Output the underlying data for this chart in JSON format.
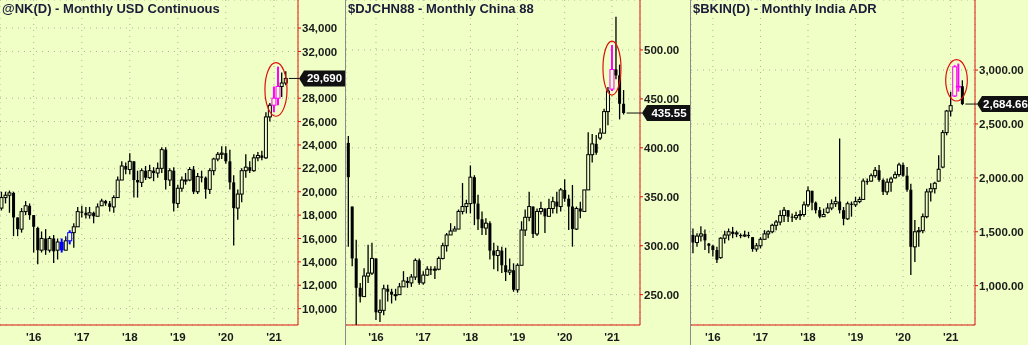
{
  "chart_data": [
    {
      "type": "candlestick",
      "title": "@NK(D) - Monthly USD Continuous",
      "x": [
        "2015-05",
        "2015-06",
        "2015-07",
        "2015-08",
        "2015-09",
        "2015-10",
        "2015-11",
        "2015-12",
        "2016-01",
        "2016-02",
        "2016-03",
        "2016-04",
        "2016-05",
        "2016-06",
        "2016-07",
        "2016-08",
        "2016-09",
        "2016-10",
        "2016-11",
        "2016-12",
        "2017-01",
        "2017-02",
        "2017-03",
        "2017-04",
        "2017-05",
        "2017-06",
        "2017-07",
        "2017-08",
        "2017-09",
        "2017-10",
        "2017-11",
        "2017-12",
        "2018-01",
        "2018-02",
        "2018-03",
        "2018-04",
        "2018-05",
        "2018-06",
        "2018-07",
        "2018-08",
        "2018-09",
        "2018-10",
        "2018-11",
        "2018-12",
        "2019-01",
        "2019-02",
        "2019-03",
        "2019-04",
        "2019-05",
        "2019-06",
        "2019-07",
        "2019-08",
        "2019-09",
        "2019-10",
        "2019-11",
        "2019-12",
        "2020-01",
        "2020-02",
        "2020-03",
        "2020-04",
        "2020-05",
        "2020-06",
        "2020-07",
        "2020-08",
        "2020-09",
        "2020-10",
        "2020-11",
        "2020-12",
        "2021-01",
        "2021-02",
        "2021-03",
        "2021-04"
      ],
      "ohlc": [
        [
          18600,
          20000,
          18400,
          19500
        ],
        [
          19500,
          20000,
          19000,
          19700
        ],
        [
          19700,
          20100,
          18200,
          19900
        ],
        [
          19900,
          20000,
          16200,
          17800
        ],
        [
          17800,
          17800,
          16200,
          16800
        ],
        [
          16800,
          18600,
          16500,
          18300
        ],
        [
          18300,
          19200,
          18000,
          18800
        ],
        [
          18800,
          19000,
          17600,
          18000
        ],
        [
          18000,
          18000,
          14800,
          17000
        ],
        [
          16900,
          17000,
          13800,
          15000
        ],
        [
          15000,
          16600,
          14800,
          16000
        ],
        [
          16000,
          16800,
          14600,
          15000
        ],
        [
          15000,
          16200,
          14800,
          16000
        ],
        [
          16000,
          16300,
          13900,
          14900
        ],
        [
          15000,
          16000,
          14200,
          15700
        ],
        [
          15700,
          16000,
          14800,
          15000
        ],
        [
          15000,
          16200,
          15000,
          15800
        ],
        [
          15800,
          16700,
          15500,
          16500
        ],
        [
          16500,
          17300,
          15200,
          17000
        ],
        [
          17000,
          18700,
          17000,
          18300
        ],
        [
          18300,
          18800,
          17800,
          18200
        ],
        [
          18200,
          18700,
          17700,
          18000
        ],
        [
          18000,
          18700,
          17700,
          18200
        ],
        [
          18200,
          18300,
          17300,
          17900
        ],
        [
          17900,
          19000,
          17900,
          18700
        ],
        [
          18800,
          19400,
          18800,
          19200
        ],
        [
          19200,
          19300,
          18800,
          19000
        ],
        [
          19000,
          19200,
          18300,
          18700
        ],
        [
          18700,
          19700,
          18200,
          19500
        ],
        [
          19500,
          21300,
          19500,
          21000
        ],
        [
          21000,
          22600,
          21000,
          22200
        ],
        [
          22200,
          22500,
          21500,
          21900
        ],
        [
          21900,
          23300,
          21500,
          22600
        ],
        [
          22600,
          22600,
          19500,
          21000
        ],
        [
          21000,
          21800,
          19500,
          20800
        ],
        [
          20800,
          22000,
          20400,
          21800
        ],
        [
          21800,
          22200,
          21000,
          21200
        ],
        [
          21200,
          22300,
          21100,
          21800
        ],
        [
          21800,
          22100,
          20900,
          21600
        ],
        [
          21600,
          22500,
          21200,
          22000
        ],
        [
          22000,
          23800,
          21600,
          23600
        ],
        [
          23600,
          23800,
          20200,
          21000
        ],
        [
          21000,
          22000,
          20500,
          21800
        ],
        [
          21800,
          22100,
          18300,
          19000
        ],
        [
          19000,
          20600,
          18600,
          20300
        ],
        [
          20300,
          21300,
          20000,
          21000
        ],
        [
          21000,
          21600,
          20600,
          21000
        ],
        [
          21000,
          22100,
          20900,
          21900
        ],
        [
          21900,
          22200,
          19800,
          20000
        ],
        [
          20000,
          21600,
          19800,
          21300
        ],
        [
          21300,
          21800,
          20800,
          21200
        ],
        [
          21200,
          21300,
          19400,
          20200
        ],
        [
          20200,
          22000,
          19800,
          21800
        ],
        [
          21800,
          22900,
          21400,
          22800
        ],
        [
          22800,
          23400,
          22600,
          23200
        ],
        [
          23200,
          23900,
          22800,
          23300
        ],
        [
          23300,
          23900,
          22400,
          22600
        ],
        [
          22600,
          23600,
          20200,
          20800
        ],
        [
          20800,
          21400,
          15400,
          18600
        ],
        [
          18600,
          20200,
          17600,
          19800
        ],
        [
          19800,
          22000,
          19100,
          21800
        ],
        [
          21800,
          23200,
          21200,
          22100
        ],
        [
          22100,
          22600,
          21600,
          21800
        ],
        [
          21800,
          23200,
          21700,
          22900
        ],
        [
          22900,
          23400,
          22600,
          23100
        ],
        [
          23100,
          23500,
          22700,
          22900
        ],
        [
          22900,
          26800,
          22800,
          26400
        ],
        [
          26400,
          27600,
          26000,
          27400
        ],
        [
          27400,
          29000,
          26800,
          28000
        ],
        [
          28000,
          30700,
          27400,
          29000
        ],
        [
          29000,
          30200,
          28100,
          29300
        ],
        [
          29300,
          30300,
          29100,
          29690
        ]
      ],
      "colors": [
        "#000000",
        "#000000",
        "#000000",
        "#000000",
        "#000000",
        "#000000",
        "#000000",
        "#000000",
        "#000000",
        "#000000",
        "#000000",
        "#000000",
        "#000000",
        "#000000",
        "#000000",
        "#0000ff",
        "#000000",
        "#0000ff",
        "#000000",
        "#000000",
        "#000000",
        "#000000",
        "#000000",
        "#000000",
        "#000000",
        "#000000",
        "#000000",
        "#000000",
        "#000000",
        "#000000",
        "#000000",
        "#000000",
        "#000000",
        "#000000",
        "#000000",
        "#000000",
        "#000000",
        "#000000",
        "#000000",
        "#000000",
        "#000000",
        "#000000",
        "#000000",
        "#000000",
        "#000000",
        "#000000",
        "#000000",
        "#000000",
        "#000000",
        "#000000",
        "#000000",
        "#000000",
        "#000000",
        "#000000",
        "#000000",
        "#000000",
        "#000000",
        "#000000",
        "#000000",
        "#000000",
        "#000000",
        "#000000",
        "#000000",
        "#000000",
        "#000000",
        "#000000",
        "#000000",
        "#000000",
        "#ff00ff",
        "#ff00ff",
        "#000000",
        "#000000"
      ],
      "xlim": [
        "2015-04-20",
        "2021-07-03"
      ],
      "xticks": [
        {
          "value": "2016-01",
          "label": "'16"
        },
        {
          "value": "2017-01",
          "label": "'17"
        },
        {
          "value": "2018-01",
          "label": "'18"
        },
        {
          "value": "2019-01",
          "label": "'19"
        },
        {
          "value": "2020-01",
          "label": "'20"
        },
        {
          "value": "2021-01",
          "label": "'21"
        }
      ],
      "ylim": [
        8600,
        36400
      ],
      "yticks": [
        {
          "value": 10000,
          "label": "10,000"
        },
        {
          "value": 12000,
          "label": "12,000"
        },
        {
          "value": 14000,
          "label": "14,000"
        },
        {
          "value": 16000,
          "label": "16,000"
        },
        {
          "value": 18000,
          "label": "18,000"
        },
        {
          "value": 20000,
          "label": "20,000"
        },
        {
          "value": 22000,
          "label": "22,000"
        },
        {
          "value": 24000,
          "label": "24,000"
        },
        {
          "value": 26000,
          "label": "26,000"
        },
        {
          "value": 28000,
          "label": "28,000"
        },
        {
          "value": 32000,
          "label": "32,000"
        },
        {
          "value": 34000,
          "label": "34,000"
        }
      ],
      "grid": true,
      "annotations": [
        {
          "text": "29,690",
          "x": "2021-04",
          "y": 29690
        }
      ]
    },
    {
      "type": "candlestick",
      "title": "$DJCHN88 - Monthly China 88",
      "x": [
        "2015-06",
        "2015-07",
        "2015-08",
        "2015-09",
        "2015-10",
        "2015-11",
        "2015-12",
        "2016-01",
        "2016-02",
        "2016-03",
        "2016-04",
        "2016-05",
        "2016-06",
        "2016-07",
        "2016-08",
        "2016-09",
        "2016-10",
        "2016-11",
        "2016-12",
        "2017-01",
        "2017-02",
        "2017-03",
        "2017-04",
        "2017-05",
        "2017-06",
        "2017-07",
        "2017-08",
        "2017-09",
        "2017-10",
        "2017-11",
        "2017-12",
        "2018-01",
        "2018-02",
        "2018-03",
        "2018-04",
        "2018-05",
        "2018-06",
        "2018-07",
        "2018-08",
        "2018-09",
        "2018-10",
        "2018-11",
        "2018-12",
        "2019-01",
        "2019-02",
        "2019-03",
        "2019-04",
        "2019-05",
        "2019-06",
        "2019-07",
        "2019-08",
        "2019-09",
        "2019-10",
        "2019-11",
        "2019-12",
        "2020-01",
        "2020-02",
        "2020-03",
        "2020-04",
        "2020-05",
        "2020-06",
        "2020-07",
        "2020-08",
        "2020-09",
        "2020-10",
        "2020-11",
        "2020-12",
        "2021-01",
        "2021-02",
        "2021-03",
        "2021-04"
      ],
      "ohlc": [
        [
          405,
          412,
          299,
          370
        ],
        [
          340,
          340,
          279,
          287
        ],
        [
          287,
          306,
          219,
          257
        ],
        [
          257,
          262,
          242,
          248
        ],
        [
          248,
          277,
          248,
          269
        ],
        [
          269,
          301,
          262,
          272
        ],
        [
          272,
          303,
          270,
          287
        ],
        [
          287,
          287,
          224,
          232
        ],
        [
          232,
          245,
          222,
          234
        ],
        [
          234,
          260,
          229,
          256
        ],
        [
          256,
          260,
          243,
          253
        ],
        [
          253,
          256,
          241,
          250
        ],
        [
          250,
          256,
          244,
          250
        ],
        [
          250,
          262,
          250,
          258
        ],
        [
          258,
          274,
          258,
          264
        ],
        [
          264,
          268,
          257,
          262
        ],
        [
          262,
          271,
          258,
          268
        ],
        [
          268,
          287,
          265,
          285
        ],
        [
          285,
          287,
          260,
          262
        ],
        [
          262,
          274,
          260,
          270
        ],
        [
          270,
          279,
          269,
          276
        ],
        [
          276,
          279,
          270,
          275
        ],
        [
          275,
          279,
          266,
          276
        ],
        [
          276,
          289,
          275,
          287
        ],
        [
          287,
          303,
          286,
          300
        ],
        [
          300,
          313,
          294,
          311
        ],
        [
          311,
          323,
          311,
          315
        ],
        [
          315,
          320,
          315,
          317
        ],
        [
          317,
          337,
          317,
          335
        ],
        [
          335,
          364,
          332,
          340
        ],
        [
          340,
          347,
          333,
          343
        ],
        [
          343,
          382,
          333,
          370
        ],
        [
          370,
          372,
          321,
          343
        ],
        [
          343,
          352,
          316,
          327
        ],
        [
          327,
          335,
          311,
          318
        ],
        [
          318,
          328,
          311,
          323
        ],
        [
          323,
          325,
          286,
          295
        ],
        [
          295,
          303,
          276,
          290
        ],
        [
          290,
          300,
          274,
          295
        ],
        [
          295,
          299,
          272,
          280
        ],
        [
          280,
          298,
          264,
          273
        ],
        [
          273,
          287,
          270,
          275
        ],
        [
          275,
          282,
          253,
          255
        ],
        [
          255,
          282,
          252,
          280
        ],
        [
          280,
          325,
          280,
          316
        ],
        [
          316,
          337,
          310,
          329
        ],
        [
          329,
          355,
          325,
          340
        ],
        [
          340,
          340,
          308,
          312
        ],
        [
          312,
          338,
          310,
          335
        ],
        [
          335,
          345,
          332,
          338
        ],
        [
          338,
          338,
          313,
          330
        ],
        [
          330,
          348,
          330,
          338
        ],
        [
          338,
          350,
          333,
          345
        ],
        [
          345,
          355,
          333,
          340
        ],
        [
          340,
          359,
          335,
          357
        ],
        [
          357,
          368,
          345,
          348
        ],
        [
          348,
          352,
          316,
          340
        ],
        [
          340,
          362,
          299,
          317
        ],
        [
          317,
          340,
          316,
          338
        ],
        [
          338,
          345,
          328,
          335
        ],
        [
          335,
          357,
          335,
          357
        ],
        [
          357,
          416,
          357,
          393
        ],
        [
          393,
          414,
          385,
          404
        ],
        [
          404,
          413,
          393,
          395
        ],
        [
          410,
          420,
          408,
          415
        ],
        [
          415,
          440,
          415,
          437
        ],
        [
          437,
          462,
          423,
          458
        ],
        [
          460,
          505,
          458,
          480
        ],
        [
          480,
          534,
          470,
          474
        ],
        [
          474,
          485,
          429,
          445
        ],
        [
          445,
          459,
          434,
          435.55
        ]
      ],
      "colors": [
        "#000000",
        "#000000",
        "#000000",
        "#000000",
        "#000000",
        "#000000",
        "#000000",
        "#000000",
        "#000000",
        "#000000",
        "#000000",
        "#000000",
        "#000000",
        "#000000",
        "#000000",
        "#000000",
        "#000000",
        "#000000",
        "#000000",
        "#000000",
        "#000000",
        "#000000",
        "#000000",
        "#000000",
        "#000000",
        "#000000",
        "#000000",
        "#000000",
        "#000000",
        "#000000",
        "#000000",
        "#000000",
        "#000000",
        "#000000",
        "#000000",
        "#000000",
        "#000000",
        "#000000",
        "#000000",
        "#000000",
        "#000000",
        "#000000",
        "#000000",
        "#000000",
        "#000000",
        "#000000",
        "#000000",
        "#000000",
        "#000000",
        "#000000",
        "#000000",
        "#000000",
        "#000000",
        "#000000",
        "#000000",
        "#000000",
        "#000000",
        "#000000",
        "#000000",
        "#000000",
        "#000000",
        "#000000",
        "#000000",
        "#000000",
        "#000000",
        "#000000",
        "#000000",
        "#ff00ff",
        "#000000",
        "#000000",
        "#000000"
      ],
      "xlim": [
        "2015-05-14",
        "2021-08-06"
      ],
      "xticks": [
        {
          "value": "2016-01",
          "label": "'16"
        },
        {
          "value": "2017-01",
          "label": "'17"
        },
        {
          "value": "2018-01",
          "label": "'18"
        },
        {
          "value": "2019-01",
          "label": "'19"
        },
        {
          "value": "2020-01",
          "label": "'20"
        },
        {
          "value": "2021-01",
          "label": "'21"
        }
      ],
      "ylim": [
        219,
        551
      ],
      "yticks": [
        {
          "value": 250,
          "label": "250.00"
        },
        {
          "value": 300,
          "label": "300.00"
        },
        {
          "value": 350,
          "label": "350.00"
        },
        {
          "value": 400,
          "label": "400.00"
        },
        {
          "value": 450,
          "label": "450.00"
        },
        {
          "value": 500,
          "label": "500.00"
        }
      ],
      "grid": true,
      "annotations": [
        {
          "text": "435.55",
          "x": "2021-04",
          "y": 435.55
        }
      ]
    },
    {
      "type": "candlestick",
      "title": "$BKIN(D) - Monthly India ADR",
      "x": [
        "2015-08",
        "2015-09",
        "2015-10",
        "2015-11",
        "2015-12",
        "2016-01",
        "2016-02",
        "2016-03",
        "2016-04",
        "2016-05",
        "2016-06",
        "2016-07",
        "2016-08",
        "2016-09",
        "2016-10",
        "2016-11",
        "2016-12",
        "2017-01",
        "2017-02",
        "2017-03",
        "2017-04",
        "2017-05",
        "2017-06",
        "2017-07",
        "2017-08",
        "2017-09",
        "2017-10",
        "2017-11",
        "2017-12",
        "2018-01",
        "2018-02",
        "2018-03",
        "2018-04",
        "2018-05",
        "2018-06",
        "2018-07",
        "2018-08",
        "2018-09",
        "2018-10",
        "2018-11",
        "2018-12",
        "2019-01",
        "2019-02",
        "2019-03",
        "2019-04",
        "2019-05",
        "2019-06",
        "2019-07",
        "2019-08",
        "2019-09",
        "2019-10",
        "2019-11",
        "2019-12",
        "2020-01",
        "2020-02",
        "2020-03",
        "2020-04",
        "2020-05",
        "2020-06",
        "2020-07",
        "2020-08",
        "2020-09",
        "2020-10",
        "2020-11",
        "2020-12",
        "2021-01",
        "2021-02",
        "2021-03",
        "2021-04"
      ],
      "ohlc": [
        [
          1470,
          1530,
          1300,
          1400
        ],
        [
          1400,
          1485,
          1360,
          1460
        ],
        [
          1460,
          1550,
          1410,
          1480
        ],
        [
          1480,
          1520,
          1330,
          1420
        ],
        [
          1390,
          1395,
          1300,
          1370
        ],
        [
          1370,
          1380,
          1270,
          1330
        ],
        [
          1330,
          1360,
          1210,
          1240
        ],
        [
          1260,
          1450,
          1250,
          1440
        ],
        [
          1440,
          1510,
          1390,
          1470
        ],
        [
          1470,
          1530,
          1420,
          1500
        ],
        [
          1500,
          1545,
          1440,
          1480
        ],
        [
          1480,
          1510,
          1450,
          1490
        ],
        [
          1470,
          1485,
          1440,
          1460
        ],
        [
          1460,
          1510,
          1450,
          1470
        ],
        [
          1470,
          1500,
          1440,
          1460
        ],
        [
          1450,
          1450,
          1315,
          1340
        ],
        [
          1340,
          1395,
          1315,
          1370
        ],
        [
          1370,
          1450,
          1345,
          1430
        ],
        [
          1430,
          1515,
          1425,
          1480
        ],
        [
          1480,
          1515,
          1440,
          1500
        ],
        [
          1500,
          1575,
          1485,
          1560
        ],
        [
          1560,
          1610,
          1515,
          1590
        ],
        [
          1590,
          1700,
          1560,
          1650
        ],
        [
          1650,
          1730,
          1590,
          1700
        ],
        [
          1700,
          1700,
          1590,
          1640
        ],
        [
          1640,
          1670,
          1590,
          1630
        ],
        [
          1630,
          1685,
          1610,
          1650
        ],
        [
          1650,
          1700,
          1610,
          1660
        ],
        [
          1660,
          1780,
          1640,
          1750
        ],
        [
          1750,
          1920,
          1730,
          1880
        ],
        [
          1880,
          1880,
          1700,
          1770
        ],
        [
          1770,
          1780,
          1670,
          1700
        ],
        [
          1700,
          1730,
          1625,
          1640
        ],
        [
          1640,
          1715,
          1640,
          1660
        ],
        [
          1680,
          1765,
          1670,
          1720
        ],
        [
          1720,
          1800,
          1700,
          1760
        ],
        [
          1760,
          1825,
          1730,
          1780
        ],
        [
          1780,
          2365,
          1670,
          1700
        ],
        [
          1700,
          1730,
          1560,
          1620
        ],
        [
          1620,
          1780,
          1610,
          1760
        ],
        [
          1760,
          1780,
          1640,
          1750
        ],
        [
          1750,
          1825,
          1730,
          1780
        ],
        [
          1780,
          1825,
          1765,
          1800
        ],
        [
          1800,
          1995,
          1795,
          1970
        ],
        [
          1970,
          1995,
          1935,
          1960
        ],
        [
          1970,
          2040,
          1965,
          2020
        ],
        [
          2020,
          2100,
          2000,
          2070
        ],
        [
          2070,
          2120,
          1965,
          1980
        ],
        [
          1980,
          1995,
          1840,
          1870
        ],
        [
          1870,
          1995,
          1840,
          1960
        ],
        [
          1960,
          2010,
          1870,
          1990
        ],
        [
          2000,
          2060,
          1995,
          2030
        ],
        [
          2030,
          2140,
          2010,
          2120
        ],
        [
          2120,
          2140,
          2010,
          2020
        ],
        [
          2020,
          2100,
          1870,
          1890
        ],
        [
          1890,
          1945,
          1100,
          1360
        ],
        [
          1360,
          1610,
          1220,
          1500
        ],
        [
          1500,
          1545,
          1360,
          1510
        ],
        [
          1510,
          1670,
          1485,
          1640
        ],
        [
          1640,
          1900,
          1625,
          1870
        ],
        [
          1870,
          1950,
          1780,
          1900
        ],
        [
          1900,
          1965,
          1855,
          1950
        ],
        [
          1970,
          2210,
          1965,
          2080
        ],
        [
          2100,
          2445,
          2090,
          2420
        ],
        [
          2420,
          2630,
          2395,
          2620
        ],
        [
          2620,
          2800,
          2570,
          2670
        ],
        [
          2760,
          3045,
          2750,
          3030
        ],
        [
          2850,
          3060,
          2800,
          2850
        ],
        [
          2850,
          2905,
          2675,
          2684.66
        ]
      ],
      "colors": [
        "#000000",
        "#000000",
        "#000000",
        "#000000",
        "#000000",
        "#000000",
        "#000000",
        "#000000",
        "#000000",
        "#000000",
        "#000000",
        "#000000",
        "#000000",
        "#000000",
        "#000000",
        "#000000",
        "#000000",
        "#000000",
        "#000000",
        "#000000",
        "#000000",
        "#000000",
        "#000000",
        "#000000",
        "#000000",
        "#000000",
        "#000000",
        "#000000",
        "#000000",
        "#000000",
        "#000000",
        "#000000",
        "#000000",
        "#000000",
        "#000000",
        "#000000",
        "#000000",
        "#000000",
        "#000000",
        "#000000",
        "#000000",
        "#000000",
        "#000000",
        "#000000",
        "#000000",
        "#000000",
        "#000000",
        "#000000",
        "#000000",
        "#000000",
        "#000000",
        "#000000",
        "#000000",
        "#000000",
        "#000000",
        "#000000",
        "#000000",
        "#000000",
        "#000000",
        "#000000",
        "#000000",
        "#000000",
        "#000000",
        "#000000",
        "#000000",
        "#000000",
        "#ff00ff",
        "#ff00ff",
        "#000000"
      ],
      "xlim": [
        "2015-07-17",
        "2021-07-07"
      ],
      "xticks": [
        {
          "value": "2016-01",
          "label": "'16"
        },
        {
          "value": "2017-01",
          "label": "'17"
        },
        {
          "value": "2018-01",
          "label": "'18"
        },
        {
          "value": "2019-01",
          "label": "'19"
        },
        {
          "value": "2020-01",
          "label": "'20"
        },
        {
          "value": "2021-01",
          "label": "'21"
        }
      ],
      "ylim": [
        635,
        3650
      ],
      "yticks": [
        {
          "value": 1000,
          "label": "1,000.00"
        },
        {
          "value": 1500,
          "label": "1,500.00"
        },
        {
          "value": 2000,
          "label": "2,000.00"
        },
        {
          "value": 2500,
          "label": "2,500.00"
        },
        {
          "value": 3000,
          "label": "3,000.00"
        }
      ],
      "grid": true,
      "annotations": [
        {
          "text": "2,684.66",
          "x": "2021-04",
          "y": 2684.66
        }
      ]
    }
  ]
}
